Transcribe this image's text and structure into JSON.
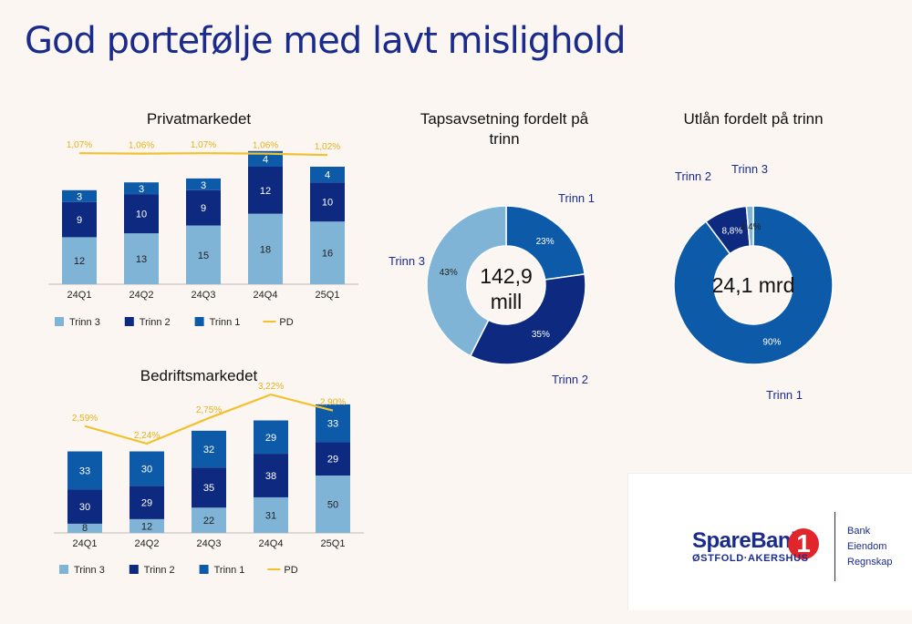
{
  "page": {
    "title": "God portefølje med lavt mislighold"
  },
  "colors": {
    "trinn1": "#0d5ba8",
    "trinn2": "#0d2a80",
    "trinn3": "#7fb4d6",
    "pd": "#f2c12e",
    "accent": "#1a2b8c"
  },
  "chart_data": [
    {
      "type": "bar",
      "title": "Privatmarkedet",
      "categories": [
        "24Q1",
        "24Q2",
        "24Q3",
        "24Q4",
        "25Q1"
      ],
      "series": [
        {
          "name": "Trinn 3",
          "values": [
            12,
            13,
            15,
            18,
            16
          ]
        },
        {
          "name": "Trinn 2",
          "values": [
            9,
            10,
            9,
            12,
            10
          ]
        },
        {
          "name": "Trinn 1",
          "values": [
            3,
            3,
            3,
            4,
            4
          ]
        }
      ],
      "line": {
        "name": "PD",
        "values": [
          1.07,
          1.06,
          1.07,
          1.06,
          1.02
        ],
        "labels": [
          "1,07%",
          "1,06%",
          "1,07%",
          "1,06%",
          "1,02%"
        ]
      },
      "legend": [
        "Trinn 3",
        "Trinn 2",
        "Trinn 1",
        "PD"
      ],
      "legend_position": "bottom"
    },
    {
      "type": "bar",
      "title": "Bedriftsmarkedet",
      "categories": [
        "24Q1",
        "24Q2",
        "24Q3",
        "24Q4",
        "25Q1"
      ],
      "series": [
        {
          "name": "Trinn 3",
          "values": [
            8,
            12,
            22,
            31,
            50
          ]
        },
        {
          "name": "Trinn 2",
          "values": [
            30,
            29,
            35,
            38,
            29
          ]
        },
        {
          "name": "Trinn 1",
          "values": [
            33,
            30,
            32,
            29,
            33
          ]
        }
      ],
      "line": {
        "name": "PD",
        "values": [
          2.59,
          2.24,
          2.75,
          3.22,
          2.9
        ],
        "labels": [
          "2,59%",
          "2,24%",
          "2,75%",
          "3,22%",
          "2,90%"
        ]
      },
      "legend": [
        "Trinn 3",
        "Trinn 2",
        "Trinn 1",
        "PD"
      ],
      "legend_position": "bottom"
    },
    {
      "type": "pie",
      "title": "Tapsavsetning fordelt på trinn",
      "center_label": "142,9 mill",
      "slices": [
        {
          "name": "Trinn 1",
          "value": 23,
          "label": "23%"
        },
        {
          "name": "Trinn 2",
          "value": 35,
          "label": "35%"
        },
        {
          "name": "Trinn 3",
          "value": 43,
          "label": "43%"
        }
      ]
    },
    {
      "type": "pie",
      "title": "Utlån fordelt på trinn",
      "center_label": "24,1 mrd",
      "slices": [
        {
          "name": "Trinn 1",
          "value": 90,
          "label": "90%"
        },
        {
          "name": "Trinn 2",
          "value": 8.8,
          "label": "8,8%"
        },
        {
          "name": "Trinn 3",
          "value": 1.4,
          "label": "1,4%"
        }
      ]
    }
  ],
  "logo": {
    "name": "SpareBank",
    "number": "1",
    "sub": "ØSTFOLD·AKERSHUS",
    "services": [
      "Bank",
      "Eiendom",
      "Regnskap"
    ]
  }
}
